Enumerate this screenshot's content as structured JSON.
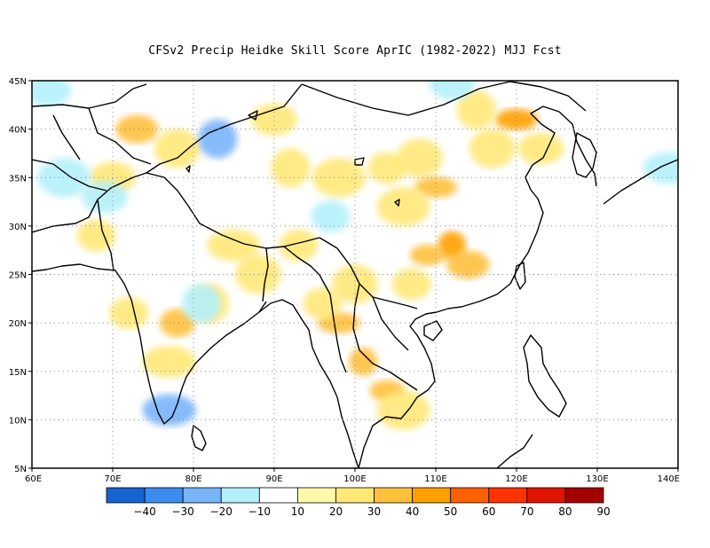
{
  "title": "CFSv2 Precip Heidke Skill Score AprIC (1982-2022) MJJ Fcst",
  "map": {
    "lon_range": [
      60,
      140
    ],
    "lat_range": [
      5,
      45
    ],
    "lon_ticks": [
      {
        "value": 60,
        "label": "60E"
      },
      {
        "value": 70,
        "label": "70E"
      },
      {
        "value": 80,
        "label": "80E"
      },
      {
        "value": 90,
        "label": "90E"
      },
      {
        "value": 100,
        "label": "100E"
      },
      {
        "value": 110,
        "label": "110E"
      },
      {
        "value": 120,
        "label": "120E"
      },
      {
        "value": 130,
        "label": "130E"
      },
      {
        "value": 140,
        "label": "140E"
      }
    ],
    "lat_ticks": [
      {
        "value": 5,
        "label": "5N"
      },
      {
        "value": 10,
        "label": "10N"
      },
      {
        "value": 15,
        "label": "15N"
      },
      {
        "value": 20,
        "label": "20N"
      },
      {
        "value": 25,
        "label": "25N"
      },
      {
        "value": 30,
        "label": "30N"
      },
      {
        "value": 35,
        "label": "35N"
      },
      {
        "value": 40,
        "label": "40N"
      },
      {
        "value": 45,
        "label": "45N"
      }
    ],
    "grid": "dotted"
  },
  "colorbar": {
    "colors": [
      "#1464d2",
      "#3c8cf0",
      "#78b4fa",
      "#b4f0fa",
      "#ffffff",
      "#fffaaa",
      "#ffe878",
      "#ffc03c",
      "#ffa000",
      "#ff6000",
      "#ff3200",
      "#e11400",
      "#a50000"
    ],
    "labels": [
      "-40",
      "-30",
      "-20",
      "-10",
      "10",
      "20",
      "30",
      "40",
      "50",
      "60",
      "70",
      "80",
      "90"
    ]
  },
  "skill_patches": [
    {
      "lon": 72,
      "lat": 21,
      "score": 20
    },
    {
      "lon": 78,
      "lat": 20,
      "score": 30
    },
    {
      "lon": 77,
      "lat": 16,
      "score": 20
    },
    {
      "lon": 82,
      "lat": 22,
      "score": 20
    },
    {
      "lon": 70,
      "lat": 35,
      "score": 20
    },
    {
      "lon": 73,
      "lat": 40,
      "score": 30
    },
    {
      "lon": 68,
      "lat": 29,
      "score": 20
    },
    {
      "lon": 78,
      "lat": 38,
      "score": 20
    },
    {
      "lon": 85,
      "lat": 28,
      "score": 20
    },
    {
      "lon": 92,
      "lat": 36,
      "score": 20
    },
    {
      "lon": 90,
      "lat": 41,
      "score": 20
    },
    {
      "lon": 98,
      "lat": 35,
      "score": 20
    },
    {
      "lon": 104,
      "lat": 36,
      "score": 20
    },
    {
      "lon": 108,
      "lat": 37,
      "score": 20
    },
    {
      "lon": 110,
      "lat": 34,
      "score": 30
    },
    {
      "lon": 112,
      "lat": 28,
      "score": 40
    },
    {
      "lon": 109,
      "lat": 27,
      "score": 30
    },
    {
      "lon": 114,
      "lat": 26,
      "score": 30
    },
    {
      "lon": 107,
      "lat": 24,
      "score": 20
    },
    {
      "lon": 100,
      "lat": 24,
      "score": 20
    },
    {
      "lon": 98,
      "lat": 20,
      "score": 30
    },
    {
      "lon": 101,
      "lat": 16,
      "score": 30
    },
    {
      "lon": 104,
      "lat": 13,
      "score": 30
    },
    {
      "lon": 106,
      "lat": 11,
      "score": 20
    },
    {
      "lon": 96,
      "lat": 22,
      "score": 20
    },
    {
      "lon": 117,
      "lat": 38,
      "score": 20
    },
    {
      "lon": 120,
      "lat": 41,
      "score": 40
    },
    {
      "lon": 115,
      "lat": 42,
      "score": 20
    },
    {
      "lon": 123,
      "lat": 38,
      "score": 20
    },
    {
      "lon": 106,
      "lat": 32,
      "score": 20
    },
    {
      "lon": 93,
      "lat": 28,
      "score": 20
    },
    {
      "lon": 88,
      "lat": 25,
      "score": 20
    },
    {
      "lon": 77,
      "lat": 11,
      "score": -20
    },
    {
      "lon": 83,
      "lat": 39,
      "score": -20
    },
    {
      "lon": 69,
      "lat": 33,
      "score": -10
    },
    {
      "lon": 64,
      "lat": 35,
      "score": -10
    },
    {
      "lon": 97,
      "lat": 31,
      "score": -10
    },
    {
      "lon": 112,
      "lat": 45,
      "score": -10
    },
    {
      "lon": 139,
      "lat": 36,
      "score": -10
    },
    {
      "lon": 81,
      "lat": 22,
      "score": -10
    },
    {
      "lon": 62,
      "lat": 44,
      "score": -10
    }
  ]
}
